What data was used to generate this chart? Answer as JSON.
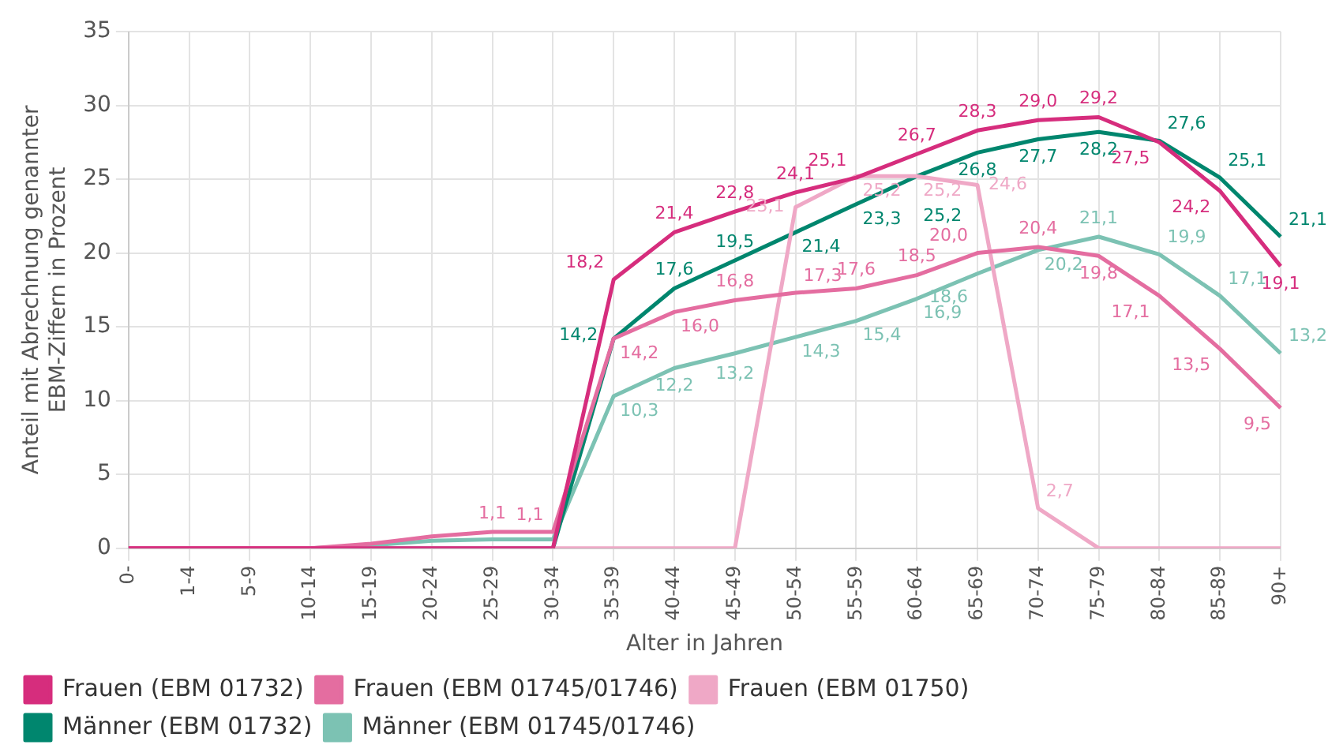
{
  "chart_data": {
    "type": "line",
    "xlabel": "Alter in Jahren",
    "ylabel": "Anteil mit Abrechnung genannter EBM-Ziffern in Prozent",
    "categories": [
      "0-",
      "1-4",
      "5-9",
      "10-14",
      "15-19",
      "20-24",
      "25-29",
      "30-34",
      "35-39",
      "40-44",
      "45-49",
      "50-54",
      "55-59",
      "60-64",
      "65-69",
      "70-74",
      "75-79",
      "80-84",
      "85-89",
      "90+"
    ],
    "ylim": [
      0,
      35
    ],
    "yticks": [
      0,
      5,
      10,
      15,
      20,
      25,
      30,
      35
    ],
    "grid": true,
    "legend": "bottom",
    "marker": "none",
    "line_style": "solid",
    "series": [
      {
        "name": "Frauen (EBM 01732)",
        "color": "#d62d7d",
        "values": [
          0,
          0,
          0,
          0,
          0,
          0,
          0,
          0,
          18.2,
          21.4,
          22.8,
          24.1,
          25.1,
          26.7,
          28.3,
          29.0,
          29.2,
          27.5,
          24.2,
          19.1
        ],
        "value_labels": [
          null,
          null,
          null,
          null,
          null,
          null,
          null,
          null,
          "18,2",
          "21,4",
          "22,8",
          "24,1",
          "25,1",
          "26,7",
          "28,3",
          "29,0",
          "29,2",
          "27,5",
          "24,2",
          "19,1"
        ]
      },
      {
        "name": "Frauen (EBM 01745/01746)",
        "color": "#e46da0",
        "values": [
          0,
          0,
          0,
          0,
          0.3,
          0.8,
          1.1,
          1.1,
          14.2,
          16.0,
          16.8,
          17.3,
          17.6,
          18.5,
          20.0,
          20.4,
          19.8,
          17.1,
          13.5,
          9.5
        ],
        "value_labels": [
          null,
          null,
          null,
          null,
          null,
          null,
          "1,1",
          "1,1",
          "14,2",
          "16,0",
          "16,8",
          "17,3",
          "17,6",
          "18,5",
          "20,0",
          "20,4",
          "19,8",
          "17,1",
          "13,5",
          "9,5"
        ]
      },
      {
        "name": "Frauen (EBM 01750)",
        "color": "#efa8c6",
        "values": [
          0,
          0,
          0,
          0,
          0,
          0,
          0,
          0,
          0,
          0,
          0,
          23.1,
          25.2,
          25.2,
          24.6,
          2.7,
          0,
          0,
          0,
          0
        ],
        "value_labels": [
          null,
          null,
          null,
          null,
          null,
          null,
          null,
          null,
          null,
          null,
          null,
          "23,1",
          "25,2",
          "25,2",
          "24,6",
          "2,7",
          null,
          null,
          null,
          null
        ]
      },
      {
        "name": "Männer (EBM 01732)",
        "color": "#00866e",
        "values": [
          null,
          null,
          null,
          0,
          0,
          0,
          0,
          0,
          14.2,
          17.6,
          19.5,
          21.4,
          23.3,
          25.2,
          26.8,
          27.7,
          28.2,
          27.6,
          25.1,
          21.1
        ],
        "value_labels": [
          null,
          null,
          null,
          null,
          null,
          null,
          null,
          null,
          "14,2",
          "17,6",
          "19,5",
          "21,4",
          "23,3",
          "25,2",
          "26,8",
          "27,7",
          "28,2",
          "27,6",
          "25,1",
          "21,1"
        ]
      },
      {
        "name": "Männer (EBM 01745/01746)",
        "color": "#7cc2b3",
        "values": [
          0,
          0,
          0,
          0,
          0.2,
          0.5,
          0.6,
          0.6,
          10.3,
          12.2,
          13.2,
          14.3,
          15.4,
          16.9,
          18.6,
          20.2,
          21.1,
          19.9,
          17.1,
          13.2
        ],
        "value_labels": [
          null,
          null,
          null,
          null,
          null,
          null,
          null,
          null,
          "10,3",
          "12,2",
          "13,2",
          "14,3",
          "15,4",
          "16,9",
          "18,6",
          "20,2",
          "21,1",
          "19,9",
          "17,1",
          "13,2"
        ]
      }
    ]
  }
}
